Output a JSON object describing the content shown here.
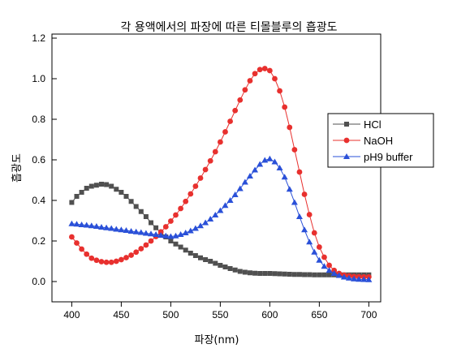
{
  "chart_data": {
    "type": "scatter",
    "title": "각 용액에서의 파장에 따른 티몰블루의 흡광도",
    "xlabel": "파장(nm)",
    "ylabel": "흡광도",
    "xlim": [
      380,
      712
    ],
    "ylim": [
      -0.1,
      1.22
    ],
    "x_ticks": [
      400,
      450,
      500,
      550,
      600,
      650,
      700
    ],
    "y_ticks": [
      0.0,
      0.2,
      0.4,
      0.6,
      0.8,
      1.0,
      1.2
    ],
    "x_tick_labels": [
      "400",
      "450",
      "500",
      "550",
      "600",
      "650",
      "700"
    ],
    "y_tick_labels": [
      "0.0",
      "0.2",
      "0.4",
      "0.6",
      "0.8",
      "1.0",
      "1.2"
    ],
    "legend_position": "right",
    "x": [
      400,
      405,
      410,
      415,
      420,
      425,
      430,
      435,
      440,
      445,
      450,
      455,
      460,
      465,
      470,
      475,
      480,
      485,
      490,
      495,
      500,
      505,
      510,
      515,
      520,
      525,
      530,
      535,
      540,
      545,
      550,
      555,
      560,
      565,
      570,
      575,
      580,
      585,
      590,
      595,
      600,
      605,
      610,
      615,
      620,
      625,
      630,
      635,
      640,
      645,
      650,
      655,
      660,
      665,
      670,
      675,
      680,
      685,
      690,
      695,
      700
    ],
    "series": [
      {
        "name": "HCl",
        "color": "#505050",
        "marker": "square",
        "values": [
          0.39,
          0.42,
          0.44,
          0.46,
          0.47,
          0.475,
          0.48,
          0.478,
          0.47,
          0.455,
          0.44,
          0.42,
          0.395,
          0.37,
          0.345,
          0.32,
          0.29,
          0.265,
          0.24,
          0.22,
          0.2,
          0.185,
          0.17,
          0.155,
          0.14,
          0.128,
          0.117,
          0.108,
          0.1,
          0.09,
          0.08,
          0.072,
          0.064,
          0.057,
          0.05,
          0.046,
          0.043,
          0.041,
          0.04,
          0.04,
          0.04,
          0.039,
          0.038,
          0.037,
          0.036,
          0.035,
          0.035,
          0.034,
          0.034,
          0.033,
          0.033,
          0.033,
          0.033,
          0.033,
          0.033,
          0.033,
          0.033,
          0.033,
          0.033,
          0.033,
          0.033
        ]
      },
      {
        "name": "NaOH",
        "color": "#e8302e",
        "marker": "circle",
        "values": [
          0.22,
          0.19,
          0.16,
          0.135,
          0.115,
          0.105,
          0.098,
          0.095,
          0.095,
          0.1,
          0.108,
          0.118,
          0.13,
          0.145,
          0.162,
          0.18,
          0.2,
          0.222,
          0.245,
          0.27,
          0.298,
          0.328,
          0.36,
          0.395,
          0.432,
          0.47,
          0.51,
          0.552,
          0.595,
          0.64,
          0.688,
          0.738,
          0.79,
          0.843,
          0.895,
          0.945,
          0.99,
          1.025,
          1.045,
          1.05,
          1.04,
          1.0,
          0.94,
          0.86,
          0.76,
          0.65,
          0.54,
          0.43,
          0.33,
          0.24,
          0.17,
          0.12,
          0.08,
          0.055,
          0.04,
          0.032,
          0.028,
          0.025,
          0.024,
          0.023,
          0.023
        ]
      },
      {
        "name": "pH9 buffer",
        "color": "#2a50d8",
        "marker": "triangle",
        "values": [
          0.285,
          0.283,
          0.28,
          0.278,
          0.275,
          0.272,
          0.268,
          0.265,
          0.262,
          0.258,
          0.255,
          0.252,
          0.248,
          0.245,
          0.242,
          0.238,
          0.235,
          0.232,
          0.228,
          0.225,
          0.222,
          0.225,
          0.232,
          0.24,
          0.25,
          0.262,
          0.275,
          0.29,
          0.308,
          0.328,
          0.35,
          0.375,
          0.4,
          0.428,
          0.458,
          0.49,
          0.52,
          0.55,
          0.578,
          0.598,
          0.605,
          0.59,
          0.56,
          0.515,
          0.455,
          0.39,
          0.32,
          0.255,
          0.195,
          0.145,
          0.105,
          0.075,
          0.055,
          0.04,
          0.03,
          0.022,
          0.017,
          0.013,
          0.011,
          0.01,
          0.009
        ]
      }
    ]
  }
}
